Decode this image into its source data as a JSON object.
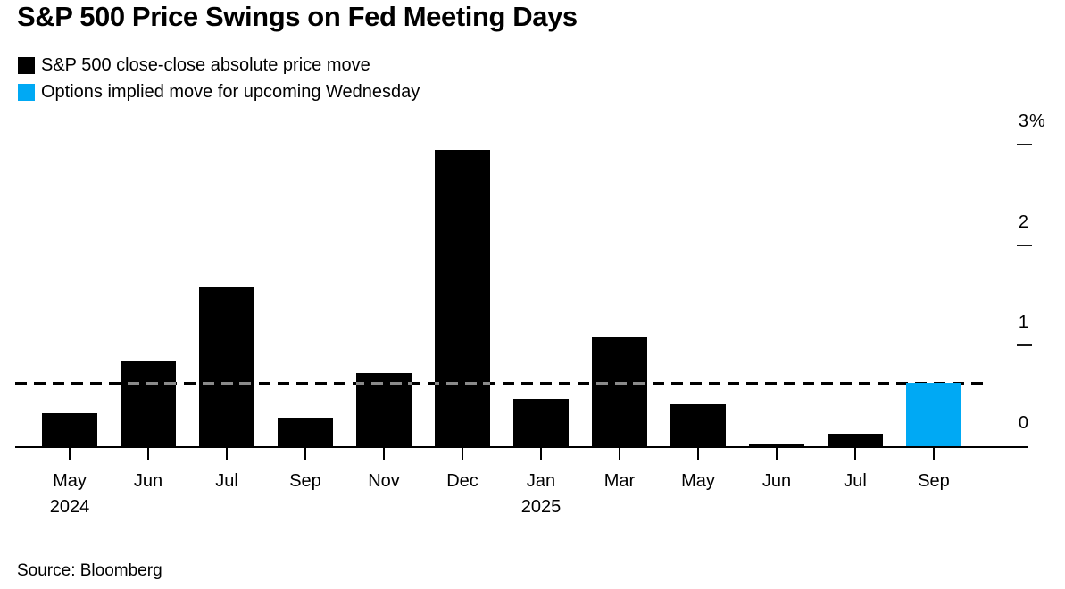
{
  "page": {
    "background": "#ffffff"
  },
  "chart_data": {
    "type": "bar",
    "title": "S&P 500 Price Swings on Fed Meeting Days",
    "legend": [
      {
        "label": "S&P 500 close-close absolute price move",
        "color": "#000000"
      },
      {
        "label": "Options implied move for upcoming Wednesday",
        "color": "#00a9f4"
      }
    ],
    "legend_position": "top-left",
    "categories": [
      {
        "month": "May",
        "year": "2024"
      },
      {
        "month": "Jun"
      },
      {
        "month": "Jul"
      },
      {
        "month": "Sep"
      },
      {
        "month": "Nov"
      },
      {
        "month": "Dec"
      },
      {
        "month": "Jan",
        "year": "2025"
      },
      {
        "month": "Mar"
      },
      {
        "month": "May"
      },
      {
        "month": "Jun"
      },
      {
        "month": "Jul"
      },
      {
        "month": "Sep"
      }
    ],
    "series": [
      {
        "name": "S&P 500 close-close absolute price move",
        "color": "#000000",
        "values": [
          0.33,
          0.84,
          1.58,
          0.28,
          0.73,
          2.95,
          0.47,
          1.08,
          0.42,
          0.03,
          0.12,
          null
        ]
      },
      {
        "name": "Options implied move for upcoming Wednesday",
        "color": "#00a9f4",
        "values": [
          null,
          null,
          null,
          null,
          null,
          null,
          null,
          null,
          null,
          null,
          null,
          0.63
        ]
      }
    ],
    "dashed_line_value": 0.63,
    "yticks": [
      {
        "label": "3%",
        "value": 3
      },
      {
        "label": "2",
        "value": 2
      },
      {
        "label": "1",
        "value": 1
      },
      {
        "label": "0",
        "value": 0
      }
    ],
    "ylim": [
      0,
      3.1
    ],
    "xlabel": "",
    "ylabel": "",
    "grid": false,
    "source": "Source: Bloomberg"
  }
}
